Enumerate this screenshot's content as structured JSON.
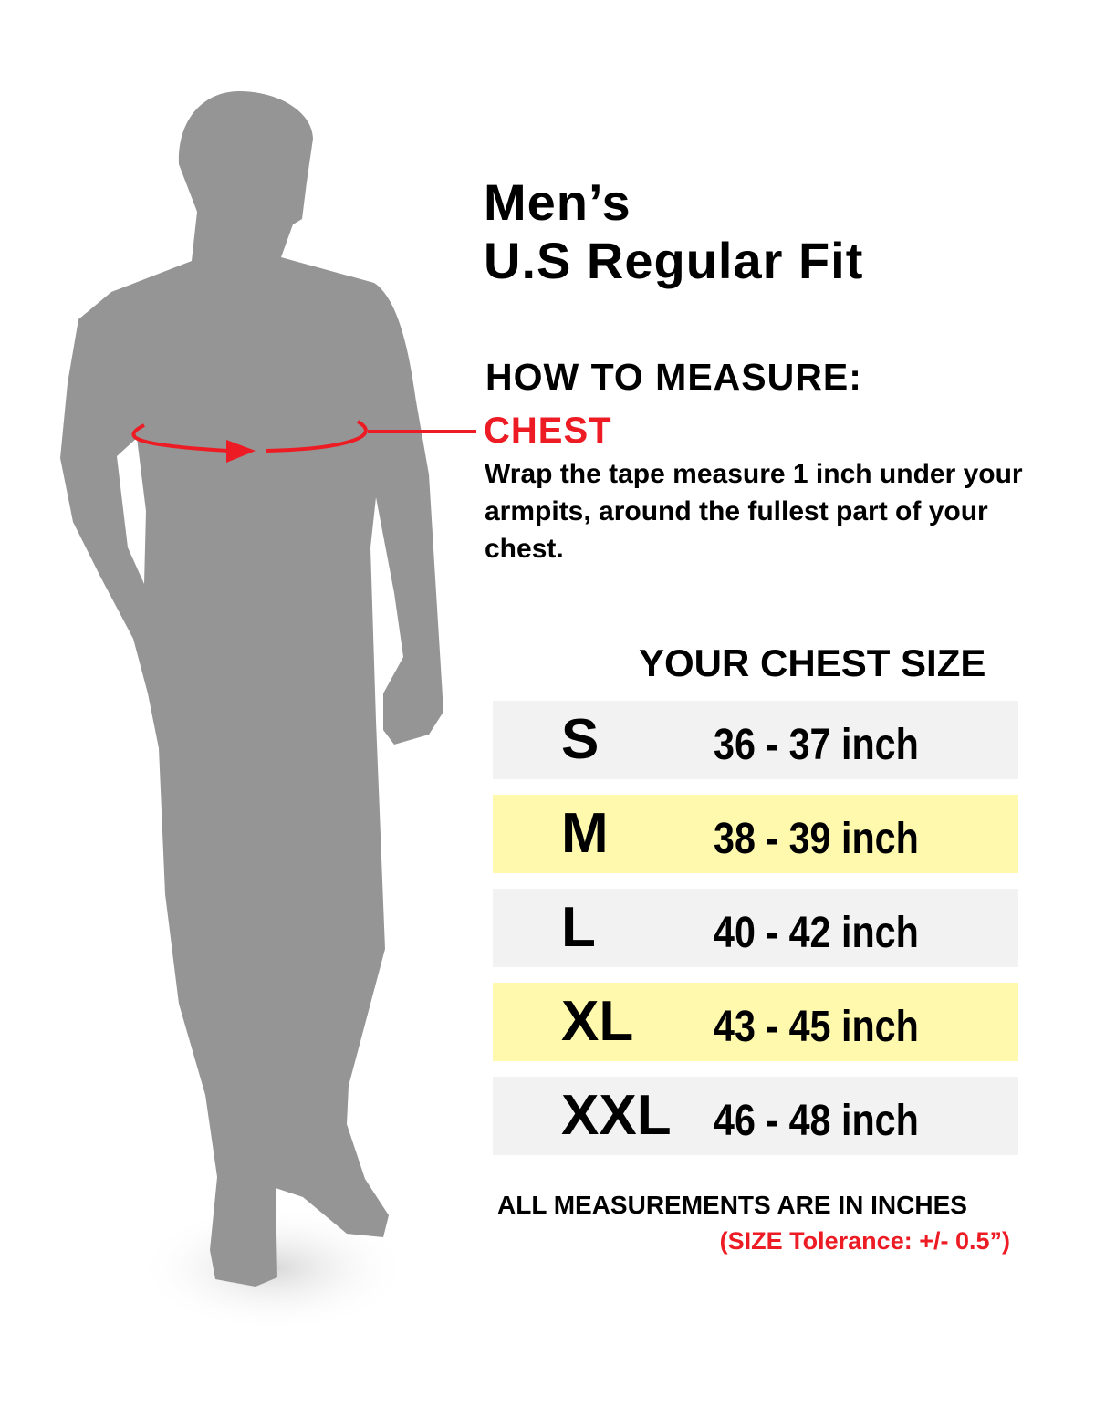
{
  "title": {
    "line1": "Men’s",
    "line2": "U.S Regular Fit"
  },
  "how_to_measure": {
    "heading": "HOW TO MEASURE:",
    "label": "CHEST",
    "description": "Wrap the tape measure 1 inch under your armpits, around the fullest part of your chest."
  },
  "table": {
    "header": "YOUR CHEST SIZE",
    "rows": [
      {
        "size": "S",
        "range": "36 - 37 inch"
      },
      {
        "size": "M",
        "range": "38 - 39 inch"
      },
      {
        "size": "L",
        "range": "40 - 42 inch"
      },
      {
        "size": "XL",
        "range": "43 - 45 inch"
      },
      {
        "size": "XXL",
        "range": "46 - 48 inch"
      }
    ]
  },
  "footer": {
    "note": "ALL MEASUREMENTS ARE IN INCHES",
    "tolerance": "(SIZE Tolerance: +/- 0.5”)"
  },
  "colors": {
    "accent": "#ed1c24",
    "row_gray": "#f2f2f2",
    "row_yellow": "#fff9ad",
    "silhouette": "#959595"
  },
  "icons": {
    "figure": "man-silhouette-icon",
    "tape": "tape-measure-arrow-icon"
  }
}
